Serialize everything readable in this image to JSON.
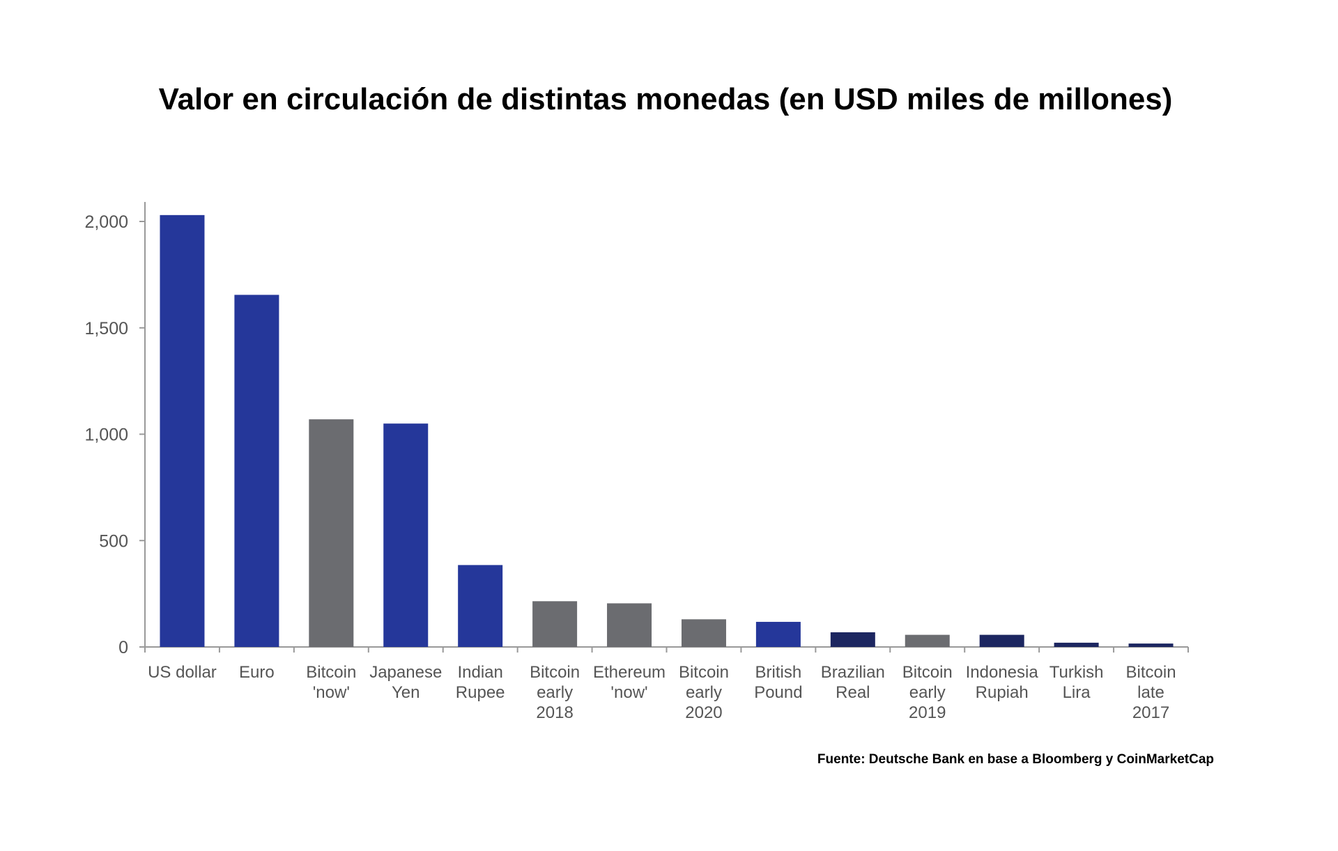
{
  "chart_data": {
    "type": "bar",
    "title": "Valor en circulación de distintas monedas (en USD miles de millones)",
    "source": "Fuente: Deutsche Bank en base a Bloomberg y CoinMarketCap",
    "xlabel": "",
    "ylabel": "",
    "ylim": [
      0,
      2100
    ],
    "yticks": [
      0,
      500,
      1000,
      1500,
      2000
    ],
    "ytick_labels": [
      "0",
      "500",
      "1,000",
      "1,500",
      "2,000"
    ],
    "grid": false,
    "categories": [
      [
        "US dollar"
      ],
      [
        "Euro"
      ],
      [
        "Bitcoin",
        "'now'"
      ],
      [
        "Japanese",
        "Yen"
      ],
      [
        "Indian",
        "Rupee"
      ],
      [
        "Bitcoin",
        "early",
        "2018"
      ],
      [
        "Ethereum",
        "'now'"
      ],
      [
        "Bitcoin",
        "early",
        "2020"
      ],
      [
        "British",
        "Pound"
      ],
      [
        "Brazilian",
        "Real"
      ],
      [
        "Bitcoin",
        "early",
        "2019"
      ],
      [
        "Indonesia",
        "Rupiah"
      ],
      [
        "Turkish",
        "Lira"
      ],
      [
        "Bitcoin",
        "late",
        "2017"
      ]
    ],
    "values": [
      2030,
      1655,
      1070,
      1050,
      385,
      215,
      205,
      130,
      118,
      69,
      57,
      57,
      20,
      16
    ],
    "bar_colors": [
      "#25379a",
      "#25379a",
      "#6b6c70",
      "#25379a",
      "#25379a",
      "#6b6c70",
      "#6b6c70",
      "#6b6c70",
      "#25379a",
      "#1c2660",
      "#6b6c70",
      "#1c2660",
      "#1c2660",
      "#1c2660"
    ]
  }
}
